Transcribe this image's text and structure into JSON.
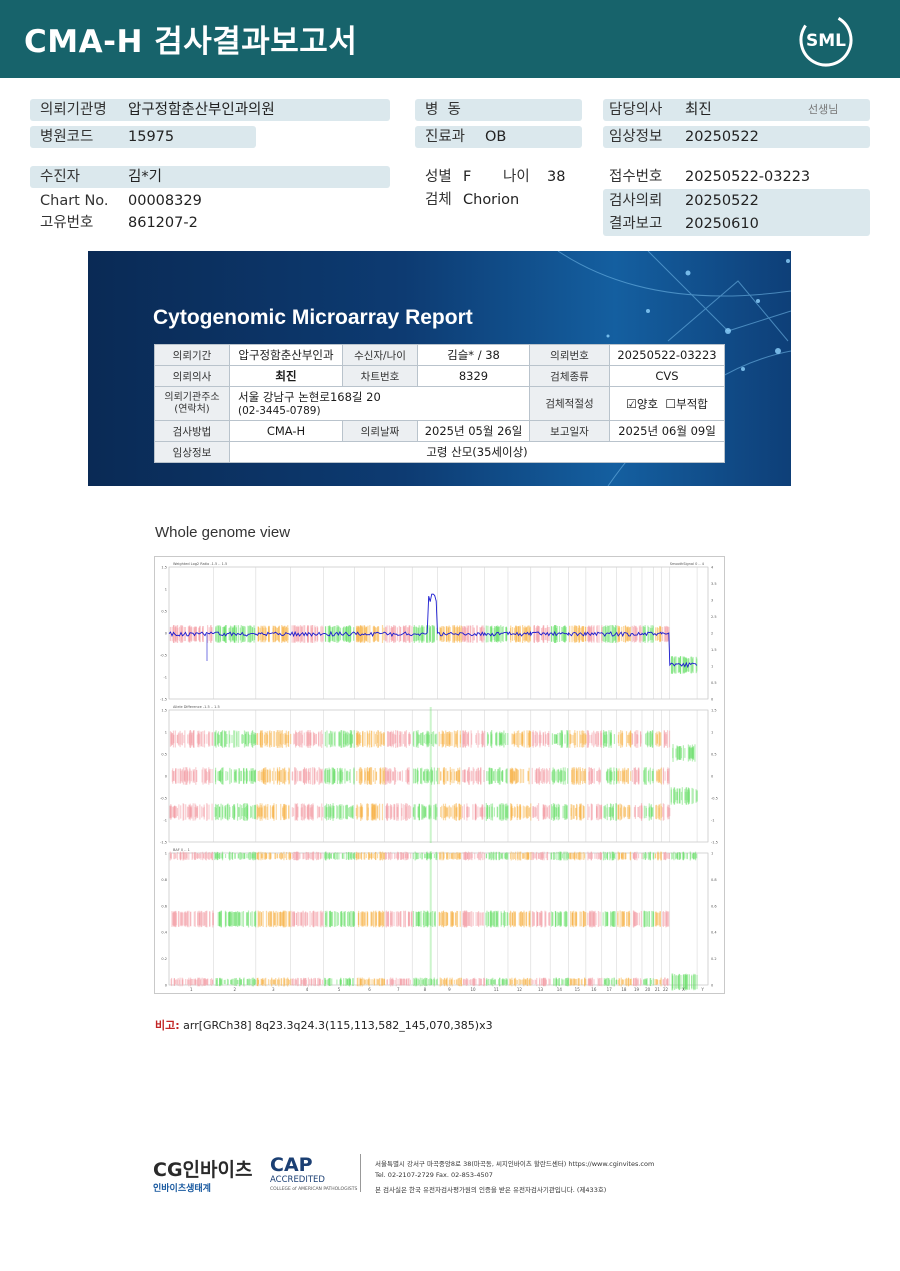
{
  "header": {
    "title": "CMA-H 검사결과보고서",
    "logo_text": "SML"
  },
  "info": {
    "institution_label": "의뢰기관명",
    "institution": "압구정함춘산부인과의원",
    "hospital_code_label": "병원코드",
    "hospital_code": "15975",
    "ward_label": "병  동",
    "ward": "",
    "dept_label": "진료과",
    "dept": "OB",
    "doctor_label": "담당의사",
    "doctor": "최진",
    "doctor_suffix": "선생님",
    "clinical_label": "임상정보",
    "clinical": "20250522",
    "patient_label": "수진자",
    "patient": "김*기",
    "chart_label": "Chart No.",
    "chart": "00008329",
    "unique_label": "고유번호",
    "unique": "861207-2",
    "sex_label": "성별",
    "sex": "F",
    "age_label": "나이",
    "age": "38",
    "specimen_label": "검체",
    "specimen": "Chorion",
    "receipt_label": "접수번호",
    "receipt": "20250522-03223",
    "request_label": "검사의뢰",
    "request": "20250522",
    "result_label": "결과보고",
    "result": "20250610"
  },
  "banner": {
    "title": "Cytogenomic Microarray Report",
    "table": {
      "k_inst": "의뢰기간",
      "v_inst": "압구정함춘산부인과",
      "k_patient": "수신자/나이",
      "v_patient": "김슬* / 38",
      "k_reqno": "의뢰번호",
      "v_reqno": "20250522-03223",
      "k_doctor": "의뢰의사",
      "v_doctor": "최진",
      "k_chart": "차트번호",
      "v_chart": "8329",
      "k_spec": "검체종류",
      "v_spec": "CVS",
      "k_addr": "의뢰기관주소\n(연락처)",
      "v_addr1": "서울 강남구 논현로168길 20",
      "v_addr2": "(02-3445-0789)",
      "k_suit": "검체적절성",
      "v_suit_ok": "양호",
      "v_suit_ng": "부적합",
      "k_method": "검사방법",
      "v_method": "CMA-H",
      "k_reqdate": "의뢰날짜",
      "v_reqdate": "2025년 05월 26일",
      "k_repdate": "보고일자",
      "v_repdate": "2025년 06월 09일",
      "k_clinical": "임상정보",
      "v_clinical": "고령 산모(35세이상)"
    }
  },
  "genome": {
    "title": "Whole genome view",
    "panel1_label": "Weighted Log2 Ratio -1.5 .. 1.5",
    "panel1_right_label": "SmoothSignal 0 .. 4",
    "panel2_label": "Allele Difference -1.5 .. 1.5",
    "panel3_label": "BAF 0 .. 1",
    "chromosomes": [
      "1",
      "2",
      "3",
      "4",
      "5",
      "6",
      "7",
      "8",
      "9",
      "10",
      "11",
      "12",
      "13",
      "14",
      "15",
      "16",
      "17",
      "18",
      "19",
      "20",
      "21",
      "22",
      "X",
      "Y"
    ],
    "ticks_p1_left": [
      "1.5",
      "1",
      "0.5",
      "0",
      "-0.5",
      "-1",
      "-1.5"
    ],
    "ticks_p1_right": [
      "4",
      "3.5",
      "3",
      "2.5",
      "2",
      "1.5",
      "1",
      "0.5",
      "0"
    ],
    "ticks_p2": [
      "1.5",
      "1",
      "0.5",
      "0",
      "-0.5",
      "-1",
      "-1.5"
    ],
    "ticks_p3": [
      "1",
      "0.8",
      "0.6",
      "0.4",
      "0.2",
      "0"
    ],
    "colors": {
      "pink": "#f4a0a8",
      "green": "#6ee06e",
      "orange": "#f7b44a",
      "blue": "#1a1ad0"
    }
  },
  "note": {
    "label": "비고:",
    "text": "arr[GRCh38] 8q23.3q24.3(115,113,582_145,070,385)x3"
  },
  "footer": {
    "cg_logo": "CG인바이츠",
    "cg_sub": "인바이츠생태계",
    "cap_logo": "CAP",
    "cap_sub": "ACCREDITED",
    "cap_sub2": "COLLEGE of AMERICAN PATHOLOGISTS",
    "address": "서울특별시 강서구 마곡중앙8로 38(마곡동, 씨지인바이츠 할란드센터)  https://www.cginvites.com",
    "tel": "Tel. 02-2107-2729   Fax. 02-853-4507",
    "cert": "본 검사실은 한국 유전자검사평가원의 인증을 받은 유전자검사기관입니다. (제433호)"
  }
}
